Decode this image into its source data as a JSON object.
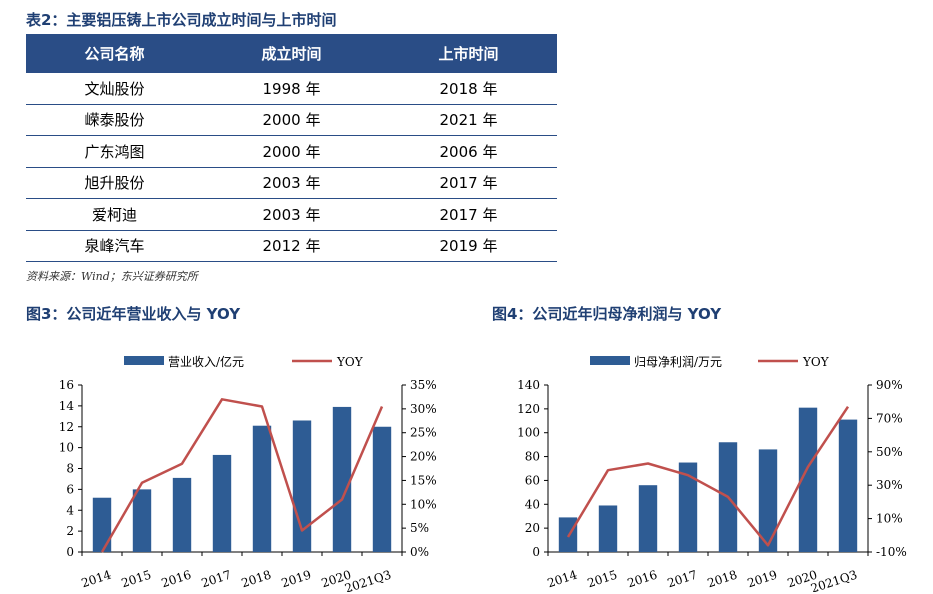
{
  "table": {
    "title": "表2：主要铝压铸上市公司成立时间与上市时间",
    "headers": [
      "公司名称",
      "成立时间",
      "上市时间"
    ],
    "rows": [
      [
        "文灿股份",
        "1998 年",
        "2018 年"
      ],
      [
        "嵘泰股份",
        "2000 年",
        "2021 年"
      ],
      [
        "广东鸿图",
        "2000 年",
        "2006 年"
      ],
      [
        "旭升股份",
        "2003 年",
        "2017 年"
      ],
      [
        "爱柯迪",
        "2003 年",
        "2017 年"
      ],
      [
        "泉峰汽车",
        "2012 年",
        "2019 年"
      ]
    ],
    "source": "资料来源：Wind；东兴证券研究所"
  },
  "chart_data": [
    {
      "type": "bar",
      "title": "图3：公司近年营业收入与 YOY",
      "categories": [
        "2014",
        "2015",
        "2016",
        "2017",
        "2018",
        "2019",
        "2020",
        "2021Q3"
      ],
      "series": [
        {
          "name": "营业收入/亿元",
          "kind": "bar",
          "axis": "left",
          "color": "#2e5c94",
          "values": [
            5.2,
            6.0,
            7.1,
            9.3,
            12.1,
            12.6,
            13.9,
            12.0
          ]
        },
        {
          "name": "YOY",
          "kind": "line",
          "axis": "right",
          "color": "#c0504d",
          "values": [
            0.0,
            14.5,
            18.5,
            32.0,
            30.5,
            4.5,
            11.0,
            30.5
          ]
        }
      ],
      "y_left": {
        "min": 0,
        "max": 16,
        "ticks": [
          "0",
          "2",
          "4",
          "6",
          "8",
          "10",
          "12",
          "14",
          "16"
        ]
      },
      "y_right": {
        "min": 0,
        "max": 35,
        "ticks": [
          "0%",
          "5%",
          "10%",
          "15%",
          "20%",
          "25%",
          "30%",
          "35%"
        ]
      },
      "legend": "top"
    },
    {
      "type": "bar",
      "title": "图4：公司近年归母净利润与 YOY",
      "categories": [
        "2014",
        "2015",
        "2016",
        "2017",
        "2018",
        "2019",
        "2020",
        "2021Q3"
      ],
      "series": [
        {
          "name": "归母净利润/万元",
          "kind": "bar",
          "axis": "left",
          "color": "#2e5c94",
          "values": [
            29,
            39,
            56,
            75,
            92,
            86,
            121,
            111
          ]
        },
        {
          "name": "YOY",
          "kind": "line",
          "axis": "right",
          "color": "#c0504d",
          "values": [
            -1,
            39,
            43,
            36,
            23,
            -6,
            41,
            77
          ]
        }
      ],
      "y_left": {
        "min": 0,
        "max": 140,
        "ticks": [
          "0",
          "20",
          "40",
          "60",
          "80",
          "100",
          "120",
          "140"
        ]
      },
      "y_right": {
        "min": -10,
        "max": 90,
        "ticks": [
          "-10%",
          "10%",
          "30%",
          "50%",
          "70%",
          "90%"
        ]
      },
      "legend": "top"
    }
  ]
}
